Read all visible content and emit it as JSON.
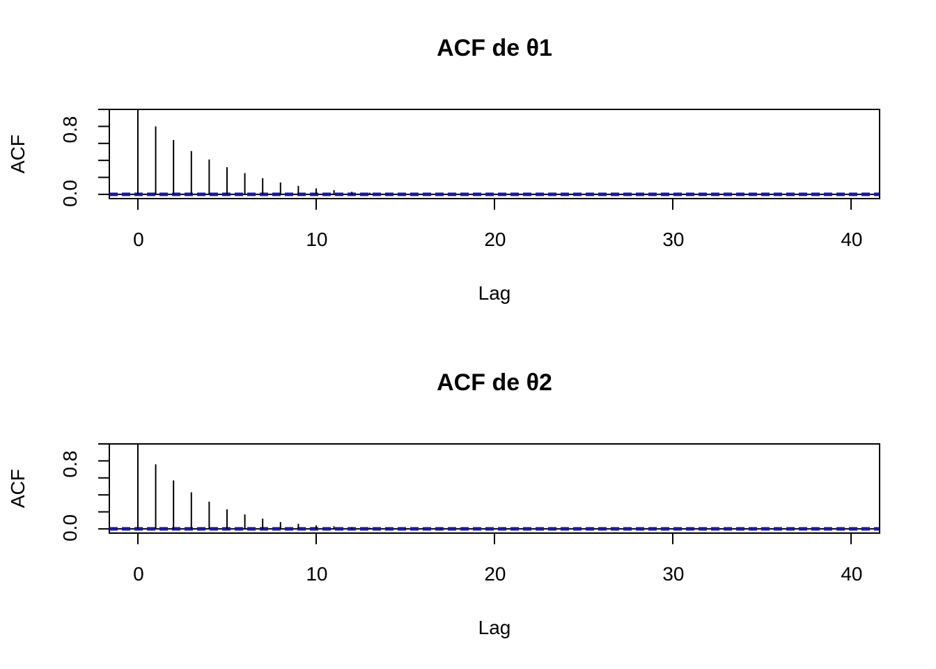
{
  "colors": {
    "background": "#ffffff",
    "spikes": "#000000",
    "confidence_band": "#1a1aaa"
  },
  "chart_data": [
    {
      "type": "bar",
      "title": "ACF de θ1",
      "xlabel": "Lag",
      "ylabel": "ACF",
      "xlim": [
        -1.6,
        41.6
      ],
      "ylim": [
        -0.05,
        1.0
      ],
      "x_ticks": [
        0,
        10,
        20,
        30,
        40
      ],
      "x_tick_labels": [
        "0",
        "10",
        "20",
        "30",
        "40"
      ],
      "y_ticks": [
        0.0,
        0.2,
        0.4,
        0.6,
        0.8,
        1.0
      ],
      "y_tick_labels": [
        "0.0",
        "",
        "",
        "",
        "0.8",
        ""
      ],
      "confidence_band": [
        -0.01,
        0.01
      ],
      "lags": [
        0,
        1,
        2,
        3,
        4,
        5,
        6,
        7,
        8,
        9,
        10,
        11,
        12,
        13,
        14,
        15,
        16,
        17,
        18,
        19,
        20,
        21,
        22,
        23,
        24,
        25,
        26,
        27,
        28,
        29,
        30,
        31,
        32,
        33,
        34,
        35,
        36,
        37,
        38,
        39,
        40,
        41
      ],
      "values": [
        1.0,
        0.8,
        0.64,
        0.51,
        0.41,
        0.32,
        0.25,
        0.19,
        0.14,
        0.1,
        0.07,
        0.05,
        0.03,
        0.02,
        0.01,
        0.005,
        0.003,
        0.002,
        0.001,
        0.0,
        0.0,
        0.0,
        0.0,
        0.0,
        0.0,
        0.0,
        0.0,
        0.0,
        0.0,
        0.0,
        0.0,
        0.0,
        0.0,
        0.0,
        0.0,
        0.0,
        0.0,
        0.0,
        0.0,
        0.0,
        0.0,
        0.0
      ]
    },
    {
      "type": "bar",
      "title": "ACF de θ2",
      "xlabel": "Lag",
      "ylabel": "ACF",
      "xlim": [
        -1.6,
        41.6
      ],
      "ylim": [
        -0.05,
        1.0
      ],
      "x_ticks": [
        0,
        10,
        20,
        30,
        40
      ],
      "x_tick_labels": [
        "0",
        "10",
        "20",
        "30",
        "40"
      ],
      "y_ticks": [
        0.0,
        0.2,
        0.4,
        0.6,
        0.8,
        1.0
      ],
      "y_tick_labels": [
        "0.0",
        "",
        "",
        "",
        "0.8",
        ""
      ],
      "confidence_band": [
        -0.01,
        0.01
      ],
      "lags": [
        0,
        1,
        2,
        3,
        4,
        5,
        6,
        7,
        8,
        9,
        10,
        11,
        12,
        13,
        14,
        15,
        16,
        17,
        18,
        19,
        20,
        21,
        22,
        23,
        24,
        25,
        26,
        27,
        28,
        29,
        30,
        31,
        32,
        33,
        34,
        35,
        36,
        37,
        38,
        39,
        40,
        41
      ],
      "values": [
        1.0,
        0.76,
        0.57,
        0.43,
        0.32,
        0.23,
        0.17,
        0.12,
        0.08,
        0.06,
        0.04,
        0.03,
        0.02,
        0.015,
        0.01,
        0.008,
        0.006,
        0.005,
        0.004,
        0.003,
        0.002,
        0.002,
        0.002,
        0.001,
        0.001,
        0.001,
        0.001,
        0.001,
        0.001,
        0.001,
        0.001,
        0.001,
        0.001,
        0.001,
        0.001,
        0.0,
        0.0,
        0.0,
        0.0,
        0.0,
        0.0,
        0.0
      ]
    }
  ]
}
